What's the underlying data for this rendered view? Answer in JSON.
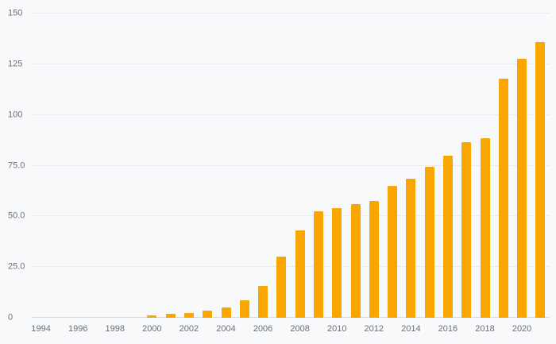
{
  "chart_data": {
    "type": "bar",
    "title": "",
    "xlabel": "",
    "ylabel": "",
    "ylim": [
      0,
      150
    ],
    "grid": true,
    "legend": false,
    "background_color": "#F8F9FA",
    "bar_color": "#F9A602",
    "gridline_color": "#EAECEF",
    "axis_line_color": "#D8DBDF",
    "tick_label_color": "#6B7076",
    "years": [
      1994,
      1995,
      1996,
      1997,
      1998,
      1999,
      2000,
      2001,
      2002,
      2003,
      2004,
      2005,
      2006,
      2007,
      2008,
      2009,
      2010,
      2011,
      2012,
      2013,
      2014,
      2015,
      2016,
      2017,
      2018,
      2019,
      2020,
      2021
    ],
    "values": [
      0,
      0,
      0,
      0,
      0,
      0,
      1,
      2,
      2.5,
      3.5,
      5,
      8.5,
      15.5,
      30,
      43,
      52.5,
      54,
      56,
      57.5,
      65,
      68.5,
      74.5,
      80,
      86.5,
      88.5,
      118,
      127.5,
      136
    ],
    "y_ticks": [
      {
        "value": 0,
        "label": "0"
      },
      {
        "value": 25,
        "label": "25.0"
      },
      {
        "value": 50,
        "label": "50.0"
      },
      {
        "value": 75,
        "label": "75.0"
      },
      {
        "value": 100,
        "label": "100"
      },
      {
        "value": 125,
        "label": "125"
      },
      {
        "value": 150,
        "label": "150"
      }
    ],
    "x_ticks": [
      {
        "year": 1994,
        "label": "1994"
      },
      {
        "year": 1996,
        "label": "1996"
      },
      {
        "year": 1998,
        "label": "1998"
      },
      {
        "year": 2000,
        "label": "2000"
      },
      {
        "year": 2002,
        "label": "2002"
      },
      {
        "year": 2004,
        "label": "2004"
      },
      {
        "year": 2006,
        "label": "2006"
      },
      {
        "year": 2008,
        "label": "2008"
      },
      {
        "year": 2010,
        "label": "2010"
      },
      {
        "year": 2012,
        "label": "2012"
      },
      {
        "year": 2014,
        "label": "2014"
      },
      {
        "year": 2016,
        "label": "2016"
      },
      {
        "year": 2018,
        "label": "2018"
      },
      {
        "year": 2020,
        "label": "2020"
      }
    ]
  }
}
